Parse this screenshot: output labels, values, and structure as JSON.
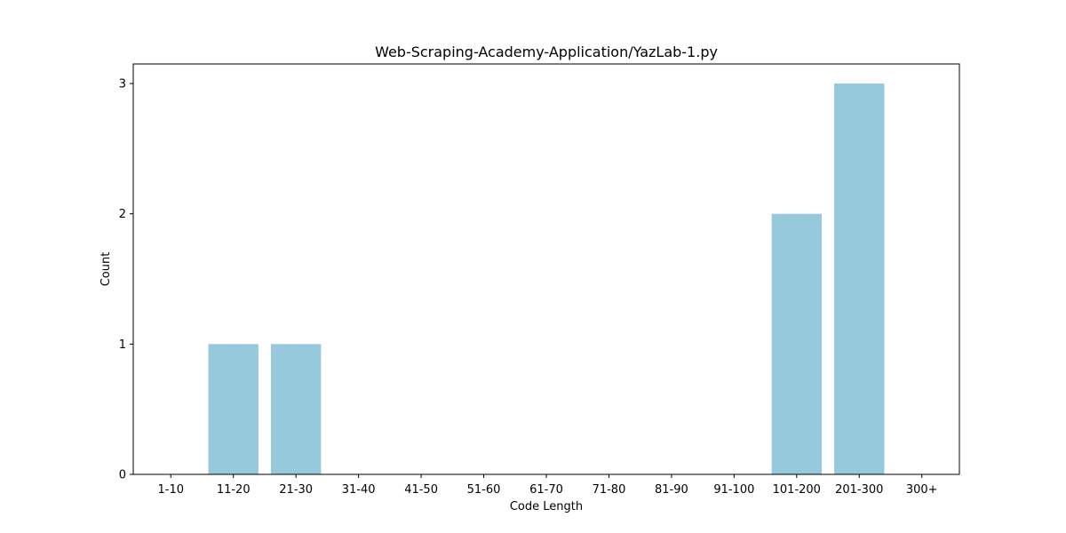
{
  "chart_data": {
    "type": "bar",
    "title": "Web-Scraping-Academy-Application/YazLab-1.py",
    "xlabel": "Code Length",
    "ylabel": "Count",
    "categories": [
      "1-10",
      "11-20",
      "21-30",
      "31-40",
      "41-50",
      "51-60",
      "61-70",
      "71-80",
      "81-90",
      "91-100",
      "101-200",
      "201-300",
      "300+"
    ],
    "values": [
      0,
      1,
      1,
      0,
      0,
      0,
      0,
      0,
      0,
      0,
      2,
      3,
      0
    ],
    "yticks": [
      0,
      1,
      2,
      3
    ],
    "ylim": [
      0,
      3.15
    ],
    "grid": false,
    "bar_color": "#96c9dc"
  }
}
